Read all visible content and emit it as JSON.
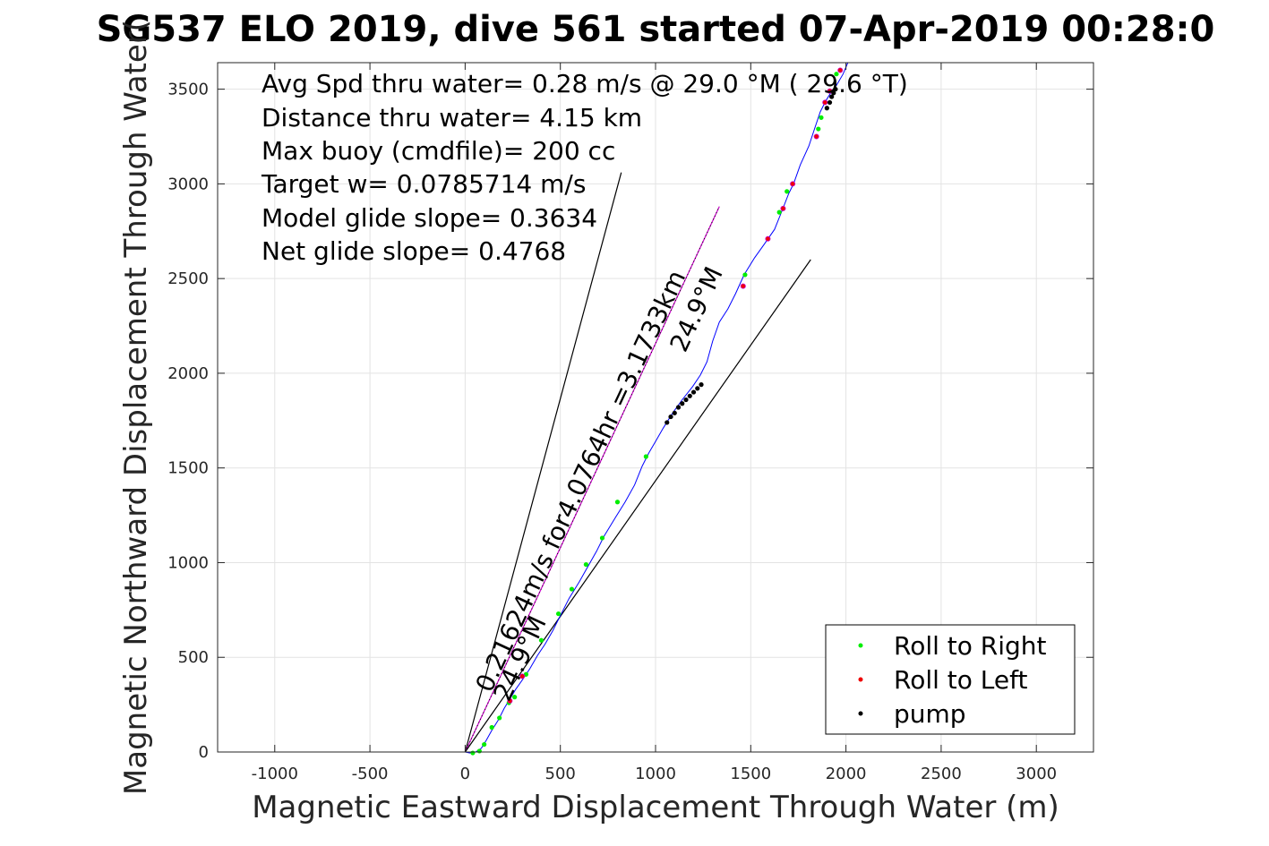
{
  "chart_data": {
    "type": "scatter",
    "title": "SG537 ELO 2019, dive 561 started 07-Apr-2019 00:28:0",
    "xlabel": "Magnetic Eastward Displacement Through Water (m)",
    "ylabel": "Magnetic Northward Displacement Through Water(",
    "xlim": [
      -1300,
      3300
    ],
    "ylim": [
      0,
      3640
    ],
    "xticks": [
      -1000,
      -500,
      0,
      500,
      1000,
      1500,
      2000,
      2500,
      3000
    ],
    "yticks": [
      0,
      500,
      1000,
      1500,
      2000,
      2500,
      3000,
      3500
    ],
    "grid": true,
    "stats_lines": [
      "Avg Spd thru water=  0.28 m/s @  29.0 °M ( 29.6 °T)",
      "Distance thru water=  4.15 km",
      "Max buoy (cmdfile)= 200 cc",
      "Target w= 0.0785714 m/s",
      "Model glide slope= 0.3634",
      "Net glide slope= 0.4768"
    ],
    "annotations": {
      "magenta_line": "0.21624m/s for4.0764hr =3.1733km",
      "magenta_heading": "24.9°M",
      "black_heading": "24.9°M"
    },
    "reference_lines": [
      {
        "name": "steep",
        "x": [
          0,
          820
        ],
        "y": [
          0,
          3060
        ],
        "color": "#000000"
      },
      {
        "name": "current",
        "x": [
          0,
          1335
        ],
        "y": [
          0,
          2880
        ],
        "color": "#cc00cc"
      },
      {
        "name": "shallow",
        "x": [
          0,
          1815
        ],
        "y": [
          0,
          2600
        ],
        "color": "#000000"
      }
    ],
    "track": {
      "name": "track",
      "color": "#0000ff",
      "x": [
        0,
        25,
        55,
        85,
        110,
        140,
        175,
        205,
        235,
        265,
        300,
        340,
        380,
        420,
        460,
        500,
        545,
        600,
        645,
        690,
        730,
        790,
        840,
        890,
        930,
        965,
        1000,
        1040,
        1090,
        1140,
        1195,
        1235,
        1270,
        1300,
        1335,
        1380,
        1420,
        1465,
        1520,
        1570,
        1625,
        1665,
        1700,
        1725,
        1760,
        1805,
        1835,
        1865,
        1895,
        1920,
        1950,
        1985,
        2010
      ],
      "y": [
        0,
        -5,
        0,
        20,
        60,
        115,
        170,
        230,
        280,
        330,
        380,
        440,
        510,
        570,
        640,
        720,
        810,
        900,
        980,
        1060,
        1140,
        1240,
        1320,
        1410,
        1510,
        1580,
        1640,
        1710,
        1790,
        1860,
        1930,
        1990,
        2060,
        2170,
        2270,
        2340,
        2420,
        2520,
        2610,
        2680,
        2760,
        2860,
        2950,
        3000,
        3100,
        3200,
        3290,
        3380,
        3440,
        3480,
        3520,
        3580,
        3640
      ]
    },
    "series": [
      {
        "name": "Roll to Right",
        "color": "#00ee00",
        "x": [
          40,
          75,
          100,
          140,
          180,
          230,
          260,
          320,
          400,
          490,
          560,
          635,
          720,
          800,
          950,
          1470,
          1650,
          1690,
          1855,
          1870,
          1950
        ],
        "y": [
          -5,
          5,
          40,
          130,
          180,
          260,
          290,
          410,
          590,
          730,
          860,
          990,
          1130,
          1320,
          1560,
          2520,
          2850,
          2960,
          3290,
          3350,
          3580
        ]
      },
      {
        "name": "Roll to Left",
        "color": "#ee0000",
        "x": [
          235,
          300,
          1460,
          1590,
          1670,
          1720,
          1845,
          1890,
          1915,
          1970
        ],
        "y": [
          270,
          400,
          2460,
          2710,
          2870,
          3000,
          3250,
          3430,
          3490,
          3600
        ],
        "edge": "#cc00cc"
      },
      {
        "name": "pump",
        "color": "#000000",
        "x": [
          1060,
          1080,
          1100,
          1120,
          1140,
          1160,
          1180,
          1200,
          1220,
          1240,
          1900,
          1915,
          1925,
          1935,
          1945
        ],
        "y": [
          1740,
          1770,
          1790,
          1820,
          1840,
          1860,
          1880,
          1900,
          1920,
          1940,
          3400,
          3430,
          3460,
          3480,
          3500
        ]
      }
    ]
  }
}
